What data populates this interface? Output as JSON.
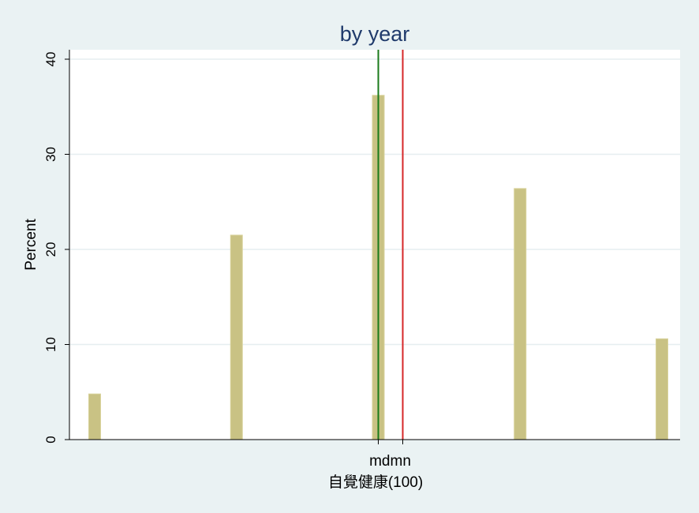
{
  "chart_data": {
    "type": "bar",
    "title": "by year",
    "xlabel": "自覺健康(100)",
    "ylabel": "Percent",
    "x_ticks": [
      "md",
      "mn"
    ],
    "ylim": [
      0,
      40
    ],
    "yticks": [
      0,
      10,
      20,
      30,
      40
    ],
    "values": [
      4.8,
      21.5,
      36.2,
      26.4,
      10.6
    ],
    "reference_lines": [
      {
        "label": "md",
        "color": "#1a7a1a"
      },
      {
        "label": "mn",
        "color": "#d62728"
      }
    ],
    "bar_color": "#c9c284",
    "grid": true
  },
  "colors": {
    "background": "#eaf2f3",
    "plot_area": "#ffffff",
    "title": "#1f3a6b",
    "gridline": "#e6eef0"
  }
}
